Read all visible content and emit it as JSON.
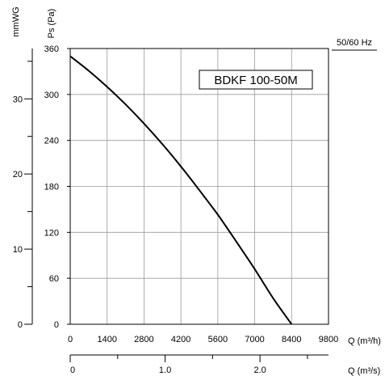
{
  "chart_data": {
    "type": "line",
    "model_label": "BDKF 100-50M",
    "frequency_label": "50/60 Hz",
    "pa_axis": {
      "label": "Ps (Pa)",
      "range": [
        0,
        360
      ],
      "ticks": [
        0,
        60,
        120,
        180,
        240,
        300,
        360
      ]
    },
    "mmwg_axis": {
      "label": "mmWG",
      "range": [
        0,
        36.7
      ],
      "ticks": [
        0,
        10,
        20,
        30
      ]
    },
    "flow_h_axis": {
      "label": "Q (m³/h)",
      "range": [
        0,
        9800
      ],
      "ticks": [
        0,
        1400,
        2800,
        4200,
        5600,
        7000,
        8400,
        9800
      ]
    },
    "flow_s_axis": {
      "label": "Q (m³/s)",
      "range": [
        0,
        2.722
      ],
      "ticks": [
        "0",
        "1.0",
        "2.0"
      ],
      "tick_values": [
        0,
        1.0,
        2.0
      ]
    },
    "grid": true,
    "series": [
      {
        "x": [
          0,
          700,
          1400,
          2100,
          2800,
          3500,
          4200,
          4900,
          5600,
          6300,
          7000,
          7700,
          8400
        ],
        "y": [
          350,
          331,
          310,
          287,
          262,
          235,
          206,
          175,
          143,
          108,
          72,
          34,
          0
        ]
      }
    ]
  }
}
